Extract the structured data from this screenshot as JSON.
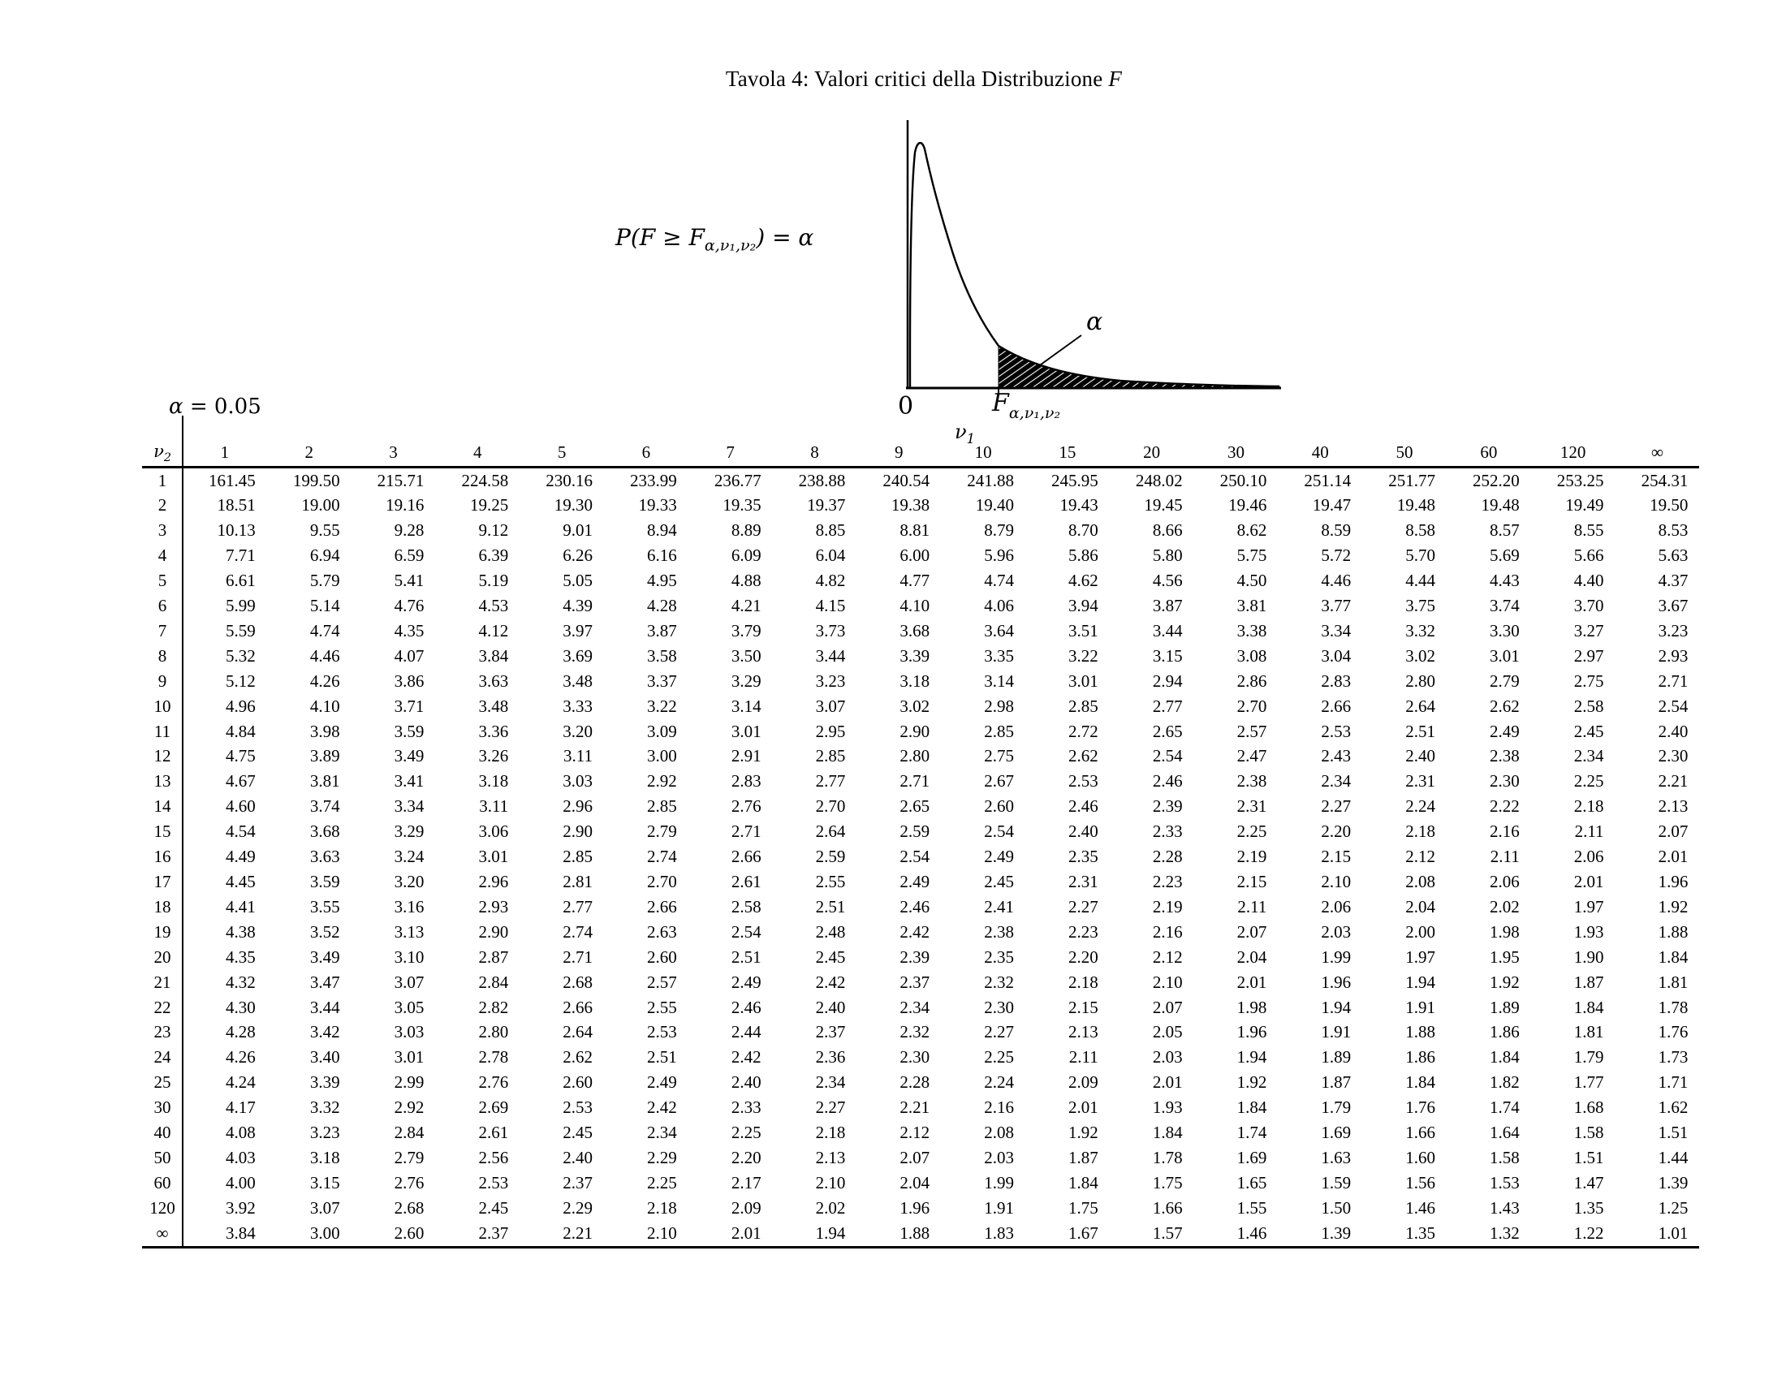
{
  "title": {
    "text": "Tavola 4: Valori critici della Distribuzione ",
    "f": "F"
  },
  "formula": {
    "prefix": "P(F ≥ F",
    "subscript": "α,ν₁,ν₂",
    "suffix": ") = α"
  },
  "alpha_note": {
    "symbol": "α",
    "value": " = 0.05"
  },
  "graph": {
    "origin_label": "0",
    "critical_base": "F",
    "critical_sub": "α,ν₁,ν₂",
    "alpha_label": "α"
  },
  "labels": {
    "nu1_base": "ν",
    "nu1_sub": "1",
    "nu2_base": "ν",
    "nu2_sub": "2"
  },
  "table": {
    "col_headers": [
      "1",
      "2",
      "3",
      "4",
      "5",
      "6",
      "7",
      "8",
      "9",
      "10",
      "15",
      "20",
      "30",
      "40",
      "50",
      "60",
      "120",
      "∞"
    ],
    "rows": [
      {
        "v2": "1",
        "values": [
          "161.45",
          "199.50",
          "215.71",
          "224.58",
          "230.16",
          "233.99",
          "236.77",
          "238.88",
          "240.54",
          "241.88",
          "245.95",
          "248.02",
          "250.10",
          "251.14",
          "251.77",
          "252.20",
          "253.25",
          "254.31"
        ]
      },
      {
        "v2": "2",
        "values": [
          "18.51",
          "19.00",
          "19.16",
          "19.25",
          "19.30",
          "19.33",
          "19.35",
          "19.37",
          "19.38",
          "19.40",
          "19.43",
          "19.45",
          "19.46",
          "19.47",
          "19.48",
          "19.48",
          "19.49",
          "19.50"
        ]
      },
      {
        "v2": "3",
        "values": [
          "10.13",
          "9.55",
          "9.28",
          "9.12",
          "9.01",
          "8.94",
          "8.89",
          "8.85",
          "8.81",
          "8.79",
          "8.70",
          "8.66",
          "8.62",
          "8.59",
          "8.58",
          "8.57",
          "8.55",
          "8.53"
        ]
      },
      {
        "v2": "4",
        "values": [
          "7.71",
          "6.94",
          "6.59",
          "6.39",
          "6.26",
          "6.16",
          "6.09",
          "6.04",
          "6.00",
          "5.96",
          "5.86",
          "5.80",
          "5.75",
          "5.72",
          "5.70",
          "5.69",
          "5.66",
          "5.63"
        ]
      },
      {
        "v2": "5",
        "values": [
          "6.61",
          "5.79",
          "5.41",
          "5.19",
          "5.05",
          "4.95",
          "4.88",
          "4.82",
          "4.77",
          "4.74",
          "4.62",
          "4.56",
          "4.50",
          "4.46",
          "4.44",
          "4.43",
          "4.40",
          "4.37"
        ]
      },
      {
        "v2": "6",
        "values": [
          "5.99",
          "5.14",
          "4.76",
          "4.53",
          "4.39",
          "4.28",
          "4.21",
          "4.15",
          "4.10",
          "4.06",
          "3.94",
          "3.87",
          "3.81",
          "3.77",
          "3.75",
          "3.74",
          "3.70",
          "3.67"
        ]
      },
      {
        "v2": "7",
        "values": [
          "5.59",
          "4.74",
          "4.35",
          "4.12",
          "3.97",
          "3.87",
          "3.79",
          "3.73",
          "3.68",
          "3.64",
          "3.51",
          "3.44",
          "3.38",
          "3.34",
          "3.32",
          "3.30",
          "3.27",
          "3.23"
        ]
      },
      {
        "v2": "8",
        "values": [
          "5.32",
          "4.46",
          "4.07",
          "3.84",
          "3.69",
          "3.58",
          "3.50",
          "3.44",
          "3.39",
          "3.35",
          "3.22",
          "3.15",
          "3.08",
          "3.04",
          "3.02",
          "3.01",
          "2.97",
          "2.93"
        ]
      },
      {
        "v2": "9",
        "values": [
          "5.12",
          "4.26",
          "3.86",
          "3.63",
          "3.48",
          "3.37",
          "3.29",
          "3.23",
          "3.18",
          "3.14",
          "3.01",
          "2.94",
          "2.86",
          "2.83",
          "2.80",
          "2.79",
          "2.75",
          "2.71"
        ]
      },
      {
        "v2": "10",
        "values": [
          "4.96",
          "4.10",
          "3.71",
          "3.48",
          "3.33",
          "3.22",
          "3.14",
          "3.07",
          "3.02",
          "2.98",
          "2.85",
          "2.77",
          "2.70",
          "2.66",
          "2.64",
          "2.62",
          "2.58",
          "2.54"
        ]
      },
      {
        "v2": "11",
        "values": [
          "4.84",
          "3.98",
          "3.59",
          "3.36",
          "3.20",
          "3.09",
          "3.01",
          "2.95",
          "2.90",
          "2.85",
          "2.72",
          "2.65",
          "2.57",
          "2.53",
          "2.51",
          "2.49",
          "2.45",
          "2.40"
        ]
      },
      {
        "v2": "12",
        "values": [
          "4.75",
          "3.89",
          "3.49",
          "3.26",
          "3.11",
          "3.00",
          "2.91",
          "2.85",
          "2.80",
          "2.75",
          "2.62",
          "2.54",
          "2.47",
          "2.43",
          "2.40",
          "2.38",
          "2.34",
          "2.30"
        ]
      },
      {
        "v2": "13",
        "values": [
          "4.67",
          "3.81",
          "3.41",
          "3.18",
          "3.03",
          "2.92",
          "2.83",
          "2.77",
          "2.71",
          "2.67",
          "2.53",
          "2.46",
          "2.38",
          "2.34",
          "2.31",
          "2.30",
          "2.25",
          "2.21"
        ]
      },
      {
        "v2": "14",
        "values": [
          "4.60",
          "3.74",
          "3.34",
          "3.11",
          "2.96",
          "2.85",
          "2.76",
          "2.70",
          "2.65",
          "2.60",
          "2.46",
          "2.39",
          "2.31",
          "2.27",
          "2.24",
          "2.22",
          "2.18",
          "2.13"
        ]
      },
      {
        "v2": "15",
        "values": [
          "4.54",
          "3.68",
          "3.29",
          "3.06",
          "2.90",
          "2.79",
          "2.71",
          "2.64",
          "2.59",
          "2.54",
          "2.40",
          "2.33",
          "2.25",
          "2.20",
          "2.18",
          "2.16",
          "2.11",
          "2.07"
        ]
      },
      {
        "v2": "16",
        "values": [
          "4.49",
          "3.63",
          "3.24",
          "3.01",
          "2.85",
          "2.74",
          "2.66",
          "2.59",
          "2.54",
          "2.49",
          "2.35",
          "2.28",
          "2.19",
          "2.15",
          "2.12",
          "2.11",
          "2.06",
          "2.01"
        ]
      },
      {
        "v2": "17",
        "values": [
          "4.45",
          "3.59",
          "3.20",
          "2.96",
          "2.81",
          "2.70",
          "2.61",
          "2.55",
          "2.49",
          "2.45",
          "2.31",
          "2.23",
          "2.15",
          "2.10",
          "2.08",
          "2.06",
          "2.01",
          "1.96"
        ]
      },
      {
        "v2": "18",
        "values": [
          "4.41",
          "3.55",
          "3.16",
          "2.93",
          "2.77",
          "2.66",
          "2.58",
          "2.51",
          "2.46",
          "2.41",
          "2.27",
          "2.19",
          "2.11",
          "2.06",
          "2.04",
          "2.02",
          "1.97",
          "1.92"
        ]
      },
      {
        "v2": "19",
        "values": [
          "4.38",
          "3.52",
          "3.13",
          "2.90",
          "2.74",
          "2.63",
          "2.54",
          "2.48",
          "2.42",
          "2.38",
          "2.23",
          "2.16",
          "2.07",
          "2.03",
          "2.00",
          "1.98",
          "1.93",
          "1.88"
        ]
      },
      {
        "v2": "20",
        "values": [
          "4.35",
          "3.49",
          "3.10",
          "2.87",
          "2.71",
          "2.60",
          "2.51",
          "2.45",
          "2.39",
          "2.35",
          "2.20",
          "2.12",
          "2.04",
          "1.99",
          "1.97",
          "1.95",
          "1.90",
          "1.84"
        ]
      },
      {
        "v2": "21",
        "values": [
          "4.32",
          "3.47",
          "3.07",
          "2.84",
          "2.68",
          "2.57",
          "2.49",
          "2.42",
          "2.37",
          "2.32",
          "2.18",
          "2.10",
          "2.01",
          "1.96",
          "1.94",
          "1.92",
          "1.87",
          "1.81"
        ]
      },
      {
        "v2": "22",
        "values": [
          "4.30",
          "3.44",
          "3.05",
          "2.82",
          "2.66",
          "2.55",
          "2.46",
          "2.40",
          "2.34",
          "2.30",
          "2.15",
          "2.07",
          "1.98",
          "1.94",
          "1.91",
          "1.89",
          "1.84",
          "1.78"
        ]
      },
      {
        "v2": "23",
        "values": [
          "4.28",
          "3.42",
          "3.03",
          "2.80",
          "2.64",
          "2.53",
          "2.44",
          "2.37",
          "2.32",
          "2.27",
          "2.13",
          "2.05",
          "1.96",
          "1.91",
          "1.88",
          "1.86",
          "1.81",
          "1.76"
        ]
      },
      {
        "v2": "24",
        "values": [
          "4.26",
          "3.40",
          "3.01",
          "2.78",
          "2.62",
          "2.51",
          "2.42",
          "2.36",
          "2.30",
          "2.25",
          "2.11",
          "2.03",
          "1.94",
          "1.89",
          "1.86",
          "1.84",
          "1.79",
          "1.73"
        ]
      },
      {
        "v2": "25",
        "values": [
          "4.24",
          "3.39",
          "2.99",
          "2.76",
          "2.60",
          "2.49",
          "2.40",
          "2.34",
          "2.28",
          "2.24",
          "2.09",
          "2.01",
          "1.92",
          "1.87",
          "1.84",
          "1.82",
          "1.77",
          "1.71"
        ]
      },
      {
        "v2": "30",
        "values": [
          "4.17",
          "3.32",
          "2.92",
          "2.69",
          "2.53",
          "2.42",
          "2.33",
          "2.27",
          "2.21",
          "2.16",
          "2.01",
          "1.93",
          "1.84",
          "1.79",
          "1.76",
          "1.74",
          "1.68",
          "1.62"
        ]
      },
      {
        "v2": "40",
        "values": [
          "4.08",
          "3.23",
          "2.84",
          "2.61",
          "2.45",
          "2.34",
          "2.25",
          "2.18",
          "2.12",
          "2.08",
          "1.92",
          "1.84",
          "1.74",
          "1.69",
          "1.66",
          "1.64",
          "1.58",
          "1.51"
        ]
      },
      {
        "v2": "50",
        "values": [
          "4.03",
          "3.18",
          "2.79",
          "2.56",
          "2.40",
          "2.29",
          "2.20",
          "2.13",
          "2.07",
          "2.03",
          "1.87",
          "1.78",
          "1.69",
          "1.63",
          "1.60",
          "1.58",
          "1.51",
          "1.44"
        ]
      },
      {
        "v2": "60",
        "values": [
          "4.00",
          "3.15",
          "2.76",
          "2.53",
          "2.37",
          "2.25",
          "2.17",
          "2.10",
          "2.04",
          "1.99",
          "1.84",
          "1.75",
          "1.65",
          "1.59",
          "1.56",
          "1.53",
          "1.47",
          "1.39"
        ]
      },
      {
        "v2": "120",
        "values": [
          "3.92",
          "3.07",
          "2.68",
          "2.45",
          "2.29",
          "2.18",
          "2.09",
          "2.02",
          "1.96",
          "1.91",
          "1.75",
          "1.66",
          "1.55",
          "1.50",
          "1.46",
          "1.43",
          "1.35",
          "1.25"
        ]
      },
      {
        "v2": "∞",
        "values": [
          "3.84",
          "3.00",
          "2.60",
          "2.37",
          "2.21",
          "2.10",
          "2.01",
          "1.94",
          "1.88",
          "1.83",
          "1.67",
          "1.57",
          "1.46",
          "1.39",
          "1.35",
          "1.32",
          "1.22",
          "1.01"
        ]
      }
    ]
  }
}
